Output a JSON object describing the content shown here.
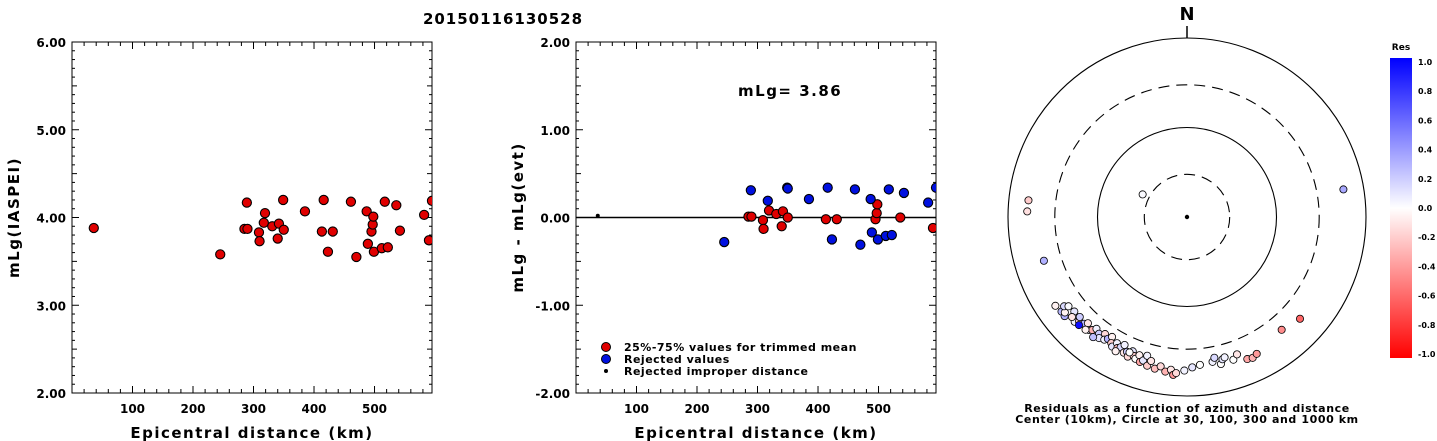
{
  "title": "20150116130528",
  "chart_data": [
    {
      "type": "scatter",
      "id": "left",
      "xlabel": "Epicentral distance (km)",
      "ylabel": "mLg(IASPEI)",
      "xlim": [
        0,
        595
      ],
      "ylim": [
        2.0,
        6.0
      ],
      "xticks": [
        "100",
        "200",
        "300",
        "400",
        "500"
      ],
      "yticks": [
        "2.00",
        "3.00",
        "4.00",
        "5.00",
        "6.00"
      ],
      "series": [
        {
          "color": "#e00000",
          "points": [
            [
              36,
              3.88
            ],
            [
              245,
              3.58
            ],
            [
              285,
              3.87
            ],
            [
              289,
              4.17
            ],
            [
              290,
              3.87
            ],
            [
              309,
              3.83
            ],
            [
              310,
              3.73
            ],
            [
              317,
              3.94
            ],
            [
              319,
              4.05
            ],
            [
              331,
              3.9
            ],
            [
              340,
              3.76
            ],
            [
              342,
              3.93
            ],
            [
              349,
              4.2
            ],
            [
              350,
              3.86
            ],
            [
              385,
              4.07
            ],
            [
              413,
              3.84
            ],
            [
              416,
              4.2
            ],
            [
              423,
              3.61
            ],
            [
              431,
              3.84
            ],
            [
              461,
              4.18
            ],
            [
              470,
              3.55
            ],
            [
              487,
              4.07
            ],
            [
              489,
              3.7
            ],
            [
              495,
              3.84
            ],
            [
              497,
              3.92
            ],
            [
              498,
              4.01
            ],
            [
              499,
              3.61
            ],
            [
              512,
              3.65
            ],
            [
              517,
              4.18
            ],
            [
              522,
              3.66
            ],
            [
              536,
              4.14
            ],
            [
              542,
              3.85
            ],
            [
              582,
              4.03
            ],
            [
              590,
              3.74
            ],
            [
              595,
              4.19
            ]
          ]
        }
      ]
    },
    {
      "type": "scatter",
      "id": "middle",
      "xlabel": "Epicentral distance (km)",
      "ylabel": "mLg - mLg(evt)",
      "xlim": [
        0,
        595
      ],
      "ylim": [
        -2.0,
        2.0
      ],
      "xticks": [
        "100",
        "200",
        "300",
        "400",
        "500"
      ],
      "yticks": [
        "-2.00",
        "-1.00",
        "0.00",
        "1.00",
        "2.00"
      ],
      "annotation": "mLg= 3.86",
      "legend": [
        {
          "label": "25%-75% values for trimmed mean",
          "color": "#e00000"
        },
        {
          "label": "Rejected values",
          "color": "#0010e0"
        },
        {
          "label": "Rejected improper distance",
          "color": "#000000"
        }
      ],
      "series": [
        {
          "name": "25%-75% values for trimmed mean",
          "color": "#e00000",
          "points": [
            [
              285,
              0.01
            ],
            [
              290,
              0.01
            ],
            [
              309,
              -0.03
            ],
            [
              310,
              -0.13
            ],
            [
              319,
              0.08
            ],
            [
              331,
              0.04
            ],
            [
              340,
              -0.1
            ],
            [
              342,
              0.07
            ],
            [
              350,
              0.0
            ],
            [
              413,
              -0.02
            ],
            [
              431,
              -0.02
            ],
            [
              495,
              -0.02
            ],
            [
              497,
              0.05
            ],
            [
              498,
              0.15
            ],
            [
              536,
              0.0
            ],
            [
              590,
              -0.12
            ]
          ]
        },
        {
          "name": "Rejected values",
          "color": "#0010e0",
          "points": [
            [
              245,
              -0.28
            ],
            [
              289,
              0.31
            ],
            [
              317,
              0.19
            ],
            [
              349,
              0.34
            ],
            [
              350,
              0.33
            ],
            [
              385,
              0.21
            ],
            [
              416,
              0.34
            ],
            [
              423,
              -0.25
            ],
            [
              461,
              0.32
            ],
            [
              470,
              -0.31
            ],
            [
              487,
              0.21
            ],
            [
              489,
              -0.17
            ],
            [
              499,
              -0.25
            ],
            [
              512,
              -0.21
            ],
            [
              517,
              0.32
            ],
            [
              522,
              -0.2
            ],
            [
              542,
              0.28
            ],
            [
              582,
              0.17
            ],
            [
              595,
              0.34
            ]
          ]
        },
        {
          "name": "Rejected improper distance",
          "color": "#000000",
          "points": [
            [
              36,
              0.02
            ]
          ]
        }
      ]
    },
    {
      "type": "polar-scatter",
      "id": "polar",
      "north_label": "N",
      "caption_line1": "Residuals as a function of azimuth and distance",
      "caption_line2": "Center (10km), Circle at 30, 100, 300 and 1000 km",
      "rings_km": [
        30,
        100,
        300,
        1000
      ],
      "colorbar": {
        "title": "Res",
        "ticks": [
          "1.0",
          "0.8",
          "0.6",
          "0.4",
          "0.2",
          "0.0",
          "-0.2",
          "-0.4",
          "-0.6",
          "-0.8",
          "-1.0"
        ],
        "max_color": "#0000ff",
        "zero_color": "#ffffff",
        "min_color": "#ff0000"
      },
      "points_note": "[azimuth_deg, distance_km, residual]",
      "points": [
        [
          297,
          36,
          0.02
        ],
        [
          80,
          595,
          0.34
        ],
        [
          276,
          604,
          -0.2
        ],
        [
          272,
          611,
          -0.12
        ],
        [
          253,
          470,
          0.31
        ],
        [
          236,
          594,
          -0.05
        ],
        [
          233,
          570,
          0.28
        ],
        [
          231,
          575,
          0.31
        ],
        [
          232,
          540,
          -0.05
        ],
        [
          234,
          498,
          0.15
        ],
        [
          233,
          455,
          0.02
        ],
        [
          230,
          440,
          0.1
        ],
        [
          227,
          520,
          0.05
        ],
        [
          226,
          475,
          -0.2
        ],
        [
          227,
          435,
          0.2
        ],
        [
          224,
          455,
          0.3
        ],
        [
          223,
          420,
          -0.1
        ],
        [
          221,
          470,
          0.05
        ],
        [
          220,
          445,
          -0.3
        ],
        [
          219,
          405,
          0.05
        ],
        [
          222,
          495,
          -0.05
        ],
        [
          217,
          430,
          0.2
        ],
        [
          216,
          470,
          0.1
        ],
        [
          215,
          395,
          -0.15
        ],
        [
          214,
          450,
          0.05
        ],
        [
          213,
          420,
          0.3
        ],
        [
          212,
          380,
          -0.05
        ],
        [
          211,
          440,
          -0.2
        ],
        [
          210,
          470,
          0.1
        ],
        [
          209,
          410,
          0.05
        ],
        [
          208,
          455,
          -0.3
        ],
        [
          207,
          430,
          0.15
        ],
        [
          206,
          390,
          0.05
        ],
        [
          205,
          470,
          -0.1
        ],
        [
          204,
          445,
          0.2
        ],
        [
          203,
          495,
          -0.15
        ],
        [
          202,
          415,
          0.1
        ],
        [
          201,
          460,
          -0.2
        ],
        [
          200,
          485,
          0.0
        ],
        [
          199,
          430,
          -0.05
        ],
        [
          198,
          505,
          -0.35
        ],
        [
          197,
          475,
          0.1
        ],
        [
          196,
          410,
          0.05
        ],
        [
          195,
          525,
          -0.2
        ],
        [
          194,
          455,
          -0.1
        ],
        [
          192,
          540,
          -0.25
        ],
        [
          190,
          495,
          -0.15
        ],
        [
          188,
          555,
          -0.3
        ],
        [
          186,
          520,
          -0.1
        ],
        [
          185,
          590,
          -0.4
        ],
        [
          218,
          505,
          0.25
        ],
        [
          225,
          510,
          0.95
        ],
        [
          229,
          505,
          -0.1
        ],
        [
          208,
          500,
          -0.05
        ],
        [
          203,
          440,
          0.0
        ],
        [
          170,
          440,
          0.05
        ],
        [
          169,
          400,
          0.15
        ],
        [
          167,
          485,
          0.0
        ],
        [
          166,
          435,
          0.1
        ],
        [
          165,
          420,
          0.05
        ],
        [
          162,
          475,
          0.0
        ],
        [
          160,
          430,
          -0.1
        ],
        [
          157,
          530,
          -0.35
        ],
        [
          155,
          545,
          -0.3
        ],
        [
          153,
          520,
          -0.4
        ],
        [
          140,
          442,
          -0.45
        ],
        [
          132,
          500,
          -0.6
        ],
        [
          184,
          560,
          -0.15
        ],
        [
          181,
          520,
          0.05
        ],
        [
          178,
          480,
          0.1
        ],
        [
          175,
          455,
          0.0
        ]
      ]
    }
  ]
}
